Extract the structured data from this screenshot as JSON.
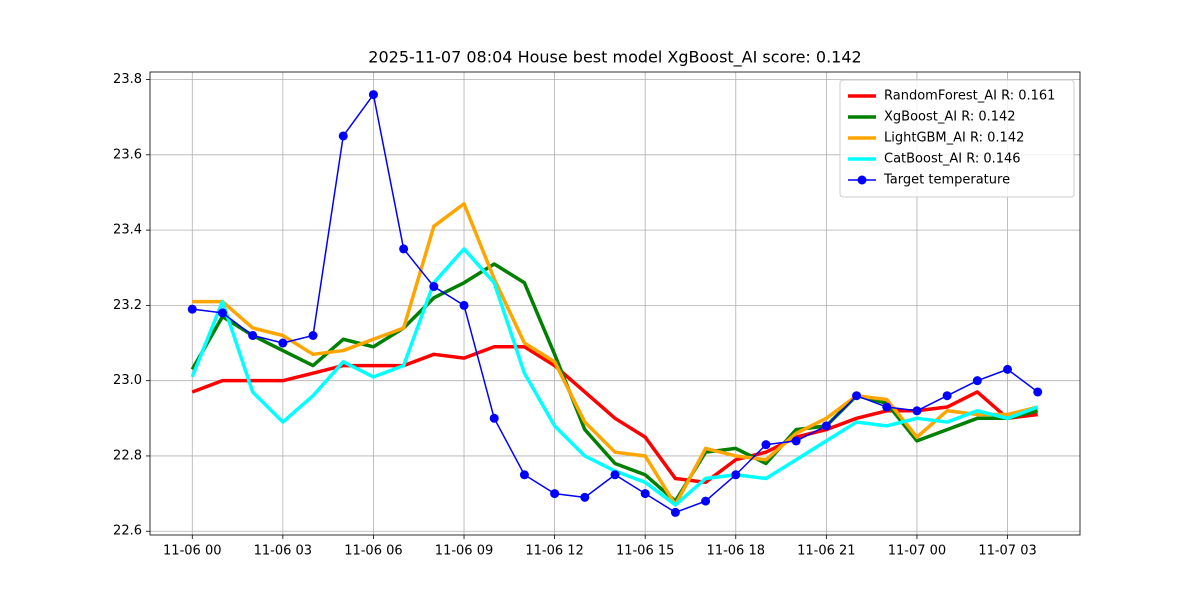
{
  "chart_data": {
    "type": "line",
    "title": "2025-11-07 08:04 House best model XgBoost_AI score: 0.142",
    "x": [
      "11-06 00",
      "11-06 01",
      "11-06 02",
      "11-06 03",
      "11-06 04",
      "11-06 05",
      "11-06 06",
      "11-06 07",
      "11-06 08",
      "11-06 09",
      "11-06 10",
      "11-06 11",
      "11-06 12",
      "11-06 13",
      "11-06 14",
      "11-06 15",
      "11-06 16",
      "11-06 17",
      "11-06 18",
      "11-06 19",
      "11-06 20",
      "11-06 21",
      "11-06 22",
      "11-06 23",
      "11-07 00",
      "11-07 01",
      "11-07 02",
      "11-07 03",
      "11-07 04"
    ],
    "xticks": [
      "11-06 00",
      "11-06 03",
      "11-06 06",
      "11-06 09",
      "11-06 12",
      "11-06 15",
      "11-06 18",
      "11-06 21",
      "11-07 00",
      "11-07 03"
    ],
    "ylim": [
      22.59,
      23.82
    ],
    "yticks": [
      22.6,
      22.8,
      {
        "value": 23,
        "label": "23.0"
      },
      23.2,
      23.4,
      23.6,
      23.8
    ],
    "grid": true,
    "legend": "upper right",
    "series": [
      {
        "name": "RandomForest_AI R: 0.161",
        "color": "#ff0000",
        "marker": false,
        "values": [
          22.97,
          23.0,
          23.0,
          23.0,
          23.02,
          23.04,
          23.04,
          23.04,
          23.07,
          23.06,
          23.09,
          23.09,
          23.04,
          22.97,
          22.9,
          22.85,
          22.74,
          22.73,
          22.79,
          22.81,
          22.85,
          22.87,
          22.9,
          22.92,
          22.92,
          22.93,
          22.97,
          22.9,
          22.91
        ]
      },
      {
        "name": "XgBoost_AI R: 0.142",
        "color": "#008000",
        "marker": false,
        "values": [
          23.03,
          23.17,
          23.12,
          23.08,
          23.04,
          23.11,
          23.09,
          23.14,
          23.22,
          23.26,
          23.31,
          23.26,
          23.07,
          22.87,
          22.78,
          22.75,
          22.68,
          22.81,
          22.82,
          22.78,
          22.87,
          22.88,
          22.96,
          22.94,
          22.84,
          22.87,
          22.9,
          22.9,
          22.92
        ]
      },
      {
        "name": "LightGBM_AI R: 0.142",
        "color": "#ffa500",
        "marker": false,
        "values": [
          23.21,
          23.21,
          23.14,
          23.12,
          23.07,
          23.08,
          23.11,
          23.14,
          23.41,
          23.47,
          23.27,
          23.1,
          23.05,
          22.89,
          22.81,
          22.8,
          22.67,
          22.82,
          22.8,
          22.79,
          22.86,
          22.9,
          22.96,
          22.95,
          22.85,
          22.92,
          22.91,
          22.91,
          22.93
        ]
      },
      {
        "name": "CatBoost_AI R: 0.146",
        "color": "#00ffff",
        "marker": false,
        "values": [
          23.01,
          23.21,
          22.97,
          22.89,
          22.96,
          23.05,
          23.01,
          23.04,
          23.26,
          23.35,
          23.26,
          23.02,
          22.88,
          22.8,
          22.76,
          22.73,
          22.67,
          22.74,
          22.75,
          22.74,
          22.79,
          22.84,
          22.89,
          22.88,
          22.9,
          22.89,
          22.92,
          22.9,
          22.93
        ]
      },
      {
        "name": "Target temperature",
        "color": "#0000ff",
        "marker": true,
        "values": [
          23.19,
          23.18,
          23.12,
          23.1,
          23.12,
          23.65,
          23.76,
          23.35,
          23.25,
          23.2,
          22.9,
          22.75,
          22.7,
          22.69,
          22.75,
          22.7,
          22.65,
          22.68,
          22.75,
          22.83,
          22.84,
          22.88,
          22.96,
          22.93,
          22.92,
          22.96,
          23.0,
          23.03,
          22.97
        ]
      }
    ]
  }
}
